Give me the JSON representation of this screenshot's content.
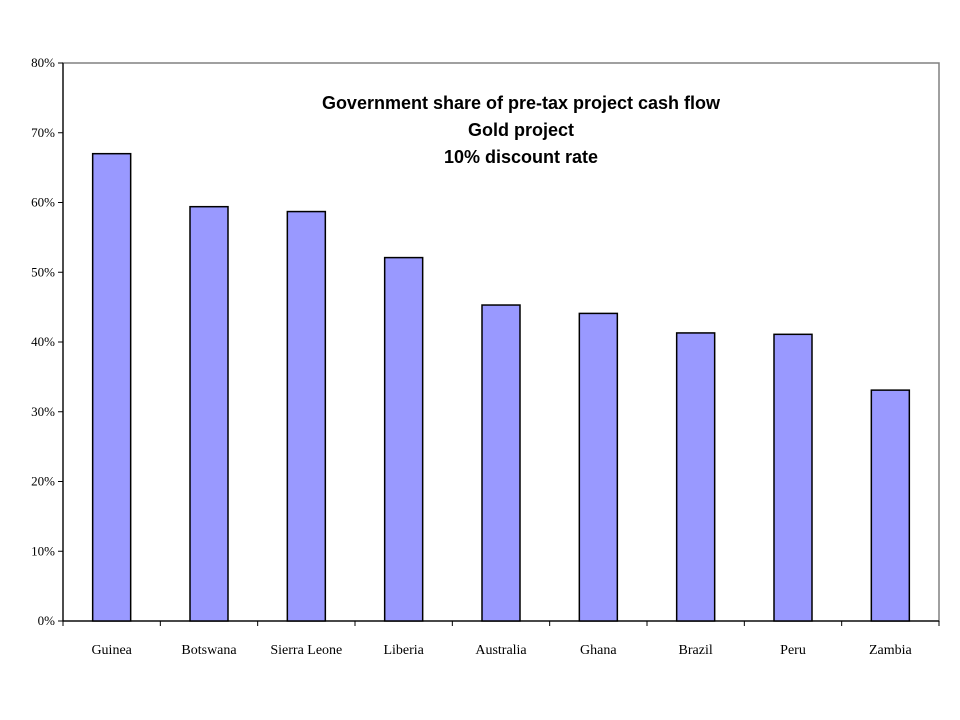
{
  "chart_data": {
    "type": "bar",
    "title_lines": [
      "Government share of pre-tax project cash flow",
      "Gold project",
      "10%  discount rate"
    ],
    "categories": [
      "Guinea",
      "Botswana",
      "Sierra Leone",
      "Liberia",
      "Australia",
      "Ghana",
      "Brazil",
      "Peru",
      "Zambia"
    ],
    "values": [
      67.0,
      59.4,
      58.7,
      52.1,
      45.3,
      44.1,
      41.3,
      41.1,
      33.1
    ],
    "ylim": [
      0,
      80
    ],
    "yticks": [
      0,
      10,
      20,
      30,
      40,
      50,
      60,
      70,
      80
    ],
    "ytick_labels": [
      "0%",
      "10%",
      "20%",
      "30%",
      "40%",
      "50%",
      "60%",
      "70%",
      "80%"
    ],
    "value_unit": "percent",
    "grid": false,
    "legend": "none",
    "bar_color": "#9999ff",
    "bar_outline": "#000000"
  }
}
